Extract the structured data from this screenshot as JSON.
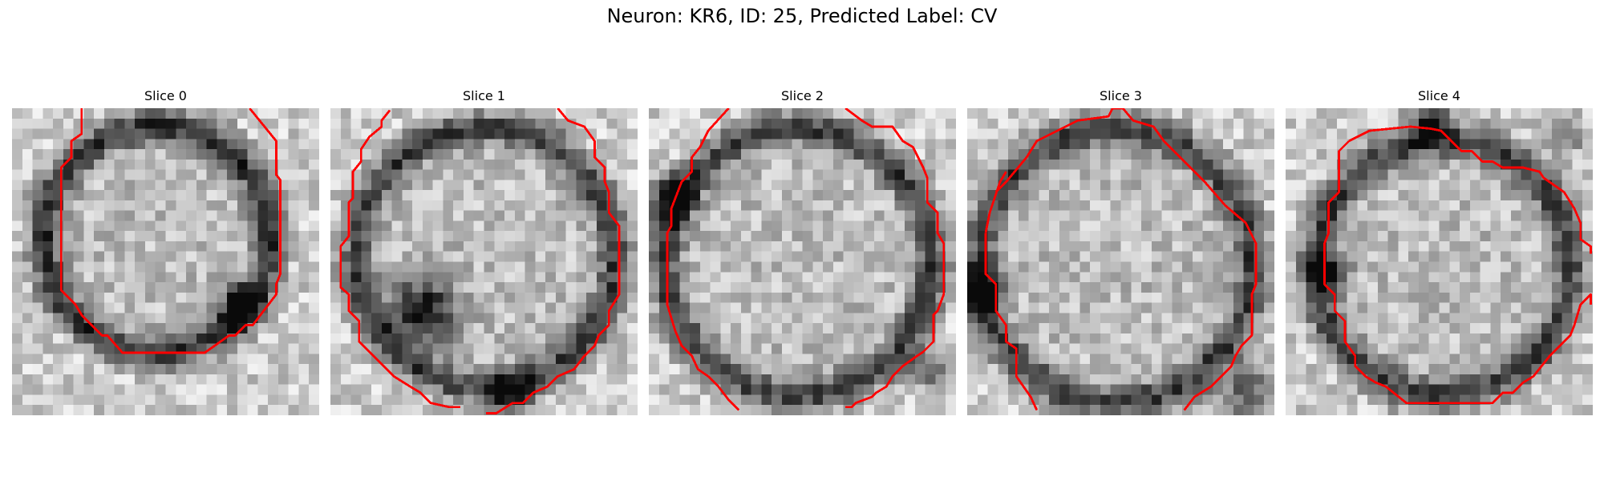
{
  "figure": {
    "title": "Neuron: KR6, ID: 25, Predicted Label: CV"
  },
  "panels": [
    {
      "title": "Slice 0"
    },
    {
      "title": "Slice 1"
    },
    {
      "title": "Slice 2"
    },
    {
      "title": "Slice 3"
    },
    {
      "title": "Slice 4"
    }
  ],
  "colors": {
    "contour": "#ff0000",
    "background": "#ffffff"
  }
}
